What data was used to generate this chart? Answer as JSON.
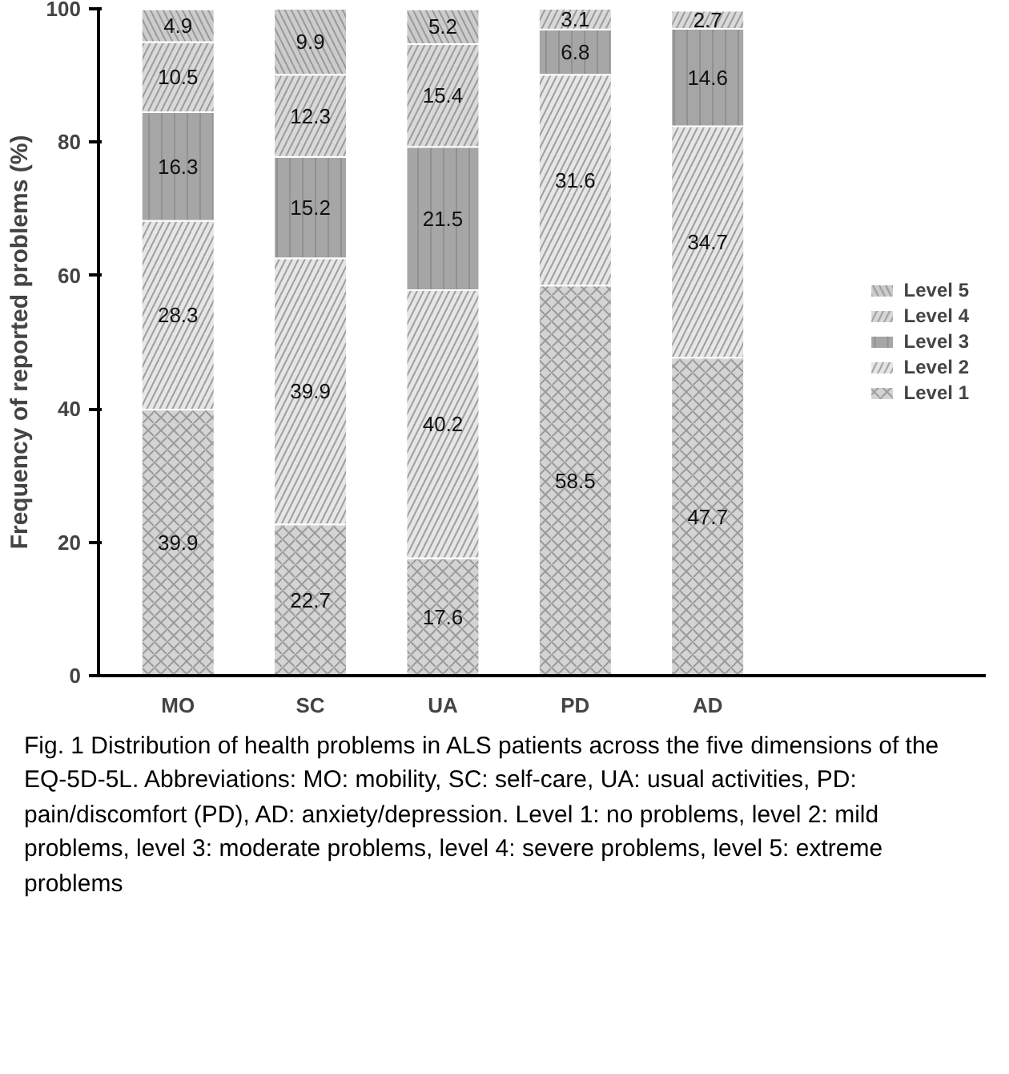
{
  "chart_data": {
    "type": "bar",
    "stacked": true,
    "ylabel": "Frequency of reported problems (%)",
    "categories": [
      "MO",
      "SC",
      "UA",
      "PD",
      "AD"
    ],
    "series": [
      {
        "name": "Level 1",
        "color": "#d4d4d4",
        "values": [
          39.9,
          22.7,
          17.6,
          58.5,
          47.7
        ]
      },
      {
        "name": "Level 2",
        "color": "#e6e6e6",
        "values": [
          28.3,
          39.9,
          40.2,
          31.6,
          34.7
        ]
      },
      {
        "name": "Level 3",
        "color": "#a6a6a6",
        "values": [
          16.3,
          15.2,
          21.5,
          6.8,
          14.6
        ]
      },
      {
        "name": "Level 4",
        "color": "#d9d9d9",
        "values": [
          10.5,
          12.3,
          15.4,
          3.1,
          2.7
        ]
      },
      {
        "name": "Level 5",
        "color": "#cccccc",
        "values": [
          4.9,
          9.9,
          5.2,
          null,
          null
        ]
      }
    ],
    "ylim": [
      0,
      100
    ],
    "yticks": [
      0,
      20,
      40,
      60,
      80,
      100
    ],
    "grid": false,
    "legend": "right",
    "data_labels": true,
    "annotations": [
      "Fig. 1  Distribution of health problems in ALS patients across the five dimensions of the EQ-5D-5L. Abbreviations: MO: mobility, SC: self-care, UA: usual activities, PD: pain/discomfort (PD), AD: anxiety/depression. Level 1: no problems, level 2: mild problems, level 3: moderate problems, level 4: severe problems, level 5: extreme problems"
    ]
  }
}
